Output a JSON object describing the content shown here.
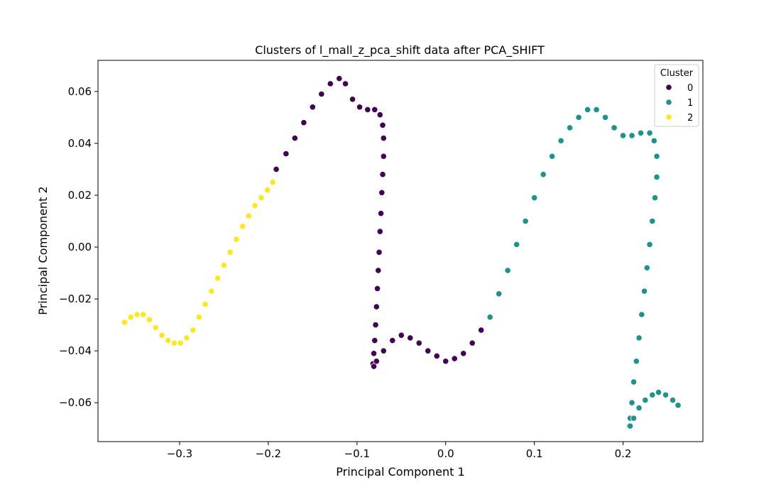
{
  "chart_data": {
    "type": "scatter",
    "title": "Clusters of l_mall_z_pca_shift data after PCA_SHIFT",
    "xlabel": "Principal Component 1",
    "ylabel": "Principal Component 2",
    "xlim": [
      -0.392,
      0.29
    ],
    "ylim": [
      -0.075,
      0.072
    ],
    "x_ticks": [
      -0.3,
      -0.2,
      -0.1,
      0.0,
      0.1,
      0.2
    ],
    "x_tick_labels": [
      "−0.3",
      "−0.2",
      "−0.1",
      "0.0",
      "0.1",
      "0.2"
    ],
    "y_ticks": [
      -0.06,
      -0.04,
      -0.02,
      0.0,
      0.02,
      0.04,
      0.06
    ],
    "y_tick_labels": [
      "−0.06",
      "−0.04",
      "−0.02",
      "0.00",
      "0.02",
      "0.04",
      "0.06"
    ],
    "grid": false,
    "legend": {
      "title": "Cluster",
      "position": "top-right",
      "entries": [
        {
          "label": "0",
          "color": "#440154"
        },
        {
          "label": "1",
          "color": "#21918c"
        },
        {
          "label": "2",
          "color": "#fde725"
        }
      ]
    },
    "series": [
      {
        "name": "0",
        "color": "#440154",
        "x": [
          -0.191,
          -0.18,
          -0.17,
          -0.16,
          -0.15,
          -0.14,
          -0.13,
          -0.12,
          -0.113,
          -0.105,
          -0.097,
          -0.088,
          -0.08,
          -0.074,
          -0.071,
          -0.07,
          -0.07,
          -0.071,
          -0.072,
          -0.073,
          -0.074,
          -0.075,
          -0.076,
          -0.077,
          -0.078,
          -0.079,
          -0.08,
          -0.081,
          -0.082,
          -0.081,
          -0.078,
          -0.07,
          -0.06,
          -0.05,
          -0.04,
          -0.03,
          -0.02,
          -0.01,
          0.0,
          0.01,
          0.02,
          0.03,
          0.04
        ],
        "y": [
          0.03,
          0.036,
          0.042,
          0.048,
          0.054,
          0.059,
          0.063,
          0.065,
          0.063,
          0.057,
          0.054,
          0.053,
          0.053,
          0.051,
          0.047,
          0.042,
          0.035,
          0.028,
          0.021,
          0.013,
          0.006,
          -0.002,
          -0.009,
          -0.016,
          -0.023,
          -0.03,
          -0.036,
          -0.041,
          -0.045,
          -0.046,
          -0.044,
          -0.04,
          -0.036,
          -0.034,
          -0.035,
          -0.037,
          -0.04,
          -0.042,
          -0.044,
          -0.043,
          -0.041,
          -0.037,
          -0.032
        ]
      },
      {
        "name": "1",
        "color": "#21918c",
        "x": [
          0.05,
          0.06,
          0.07,
          0.08,
          0.09,
          0.1,
          0.11,
          0.12,
          0.13,
          0.14,
          0.15,
          0.16,
          0.17,
          0.18,
          0.19,
          0.2,
          0.21,
          0.22,
          0.23,
          0.235,
          0.238,
          0.238,
          0.236,
          0.233,
          0.23,
          0.227,
          0.224,
          0.221,
          0.218,
          0.215,
          0.212,
          0.21,
          0.208,
          0.207,
          0.208,
          0.212,
          0.218,
          0.225,
          0.233,
          0.24,
          0.248,
          0.256,
          0.262
        ],
        "y": [
          -0.027,
          -0.018,
          -0.009,
          0.001,
          0.01,
          0.019,
          0.028,
          0.035,
          0.041,
          0.046,
          0.05,
          0.053,
          0.053,
          0.05,
          0.046,
          0.043,
          0.043,
          0.044,
          0.044,
          0.041,
          0.035,
          0.027,
          0.019,
          0.01,
          0.001,
          -0.008,
          -0.017,
          -0.026,
          -0.035,
          -0.044,
          -0.052,
          -0.06,
          -0.066,
          -0.069,
          -0.069,
          -0.066,
          -0.062,
          -0.059,
          -0.057,
          -0.056,
          -0.057,
          -0.059,
          -0.061
        ]
      },
      {
        "name": "2",
        "color": "#fde725",
        "x": [
          -0.362,
          -0.355,
          -0.348,
          -0.341,
          -0.334,
          -0.327,
          -0.32,
          -0.313,
          -0.306,
          -0.299,
          -0.292,
          -0.285,
          -0.278,
          -0.271,
          -0.264,
          -0.257,
          -0.25,
          -0.243,
          -0.236,
          -0.229,
          -0.222,
          -0.215,
          -0.208,
          -0.201,
          -0.195
        ],
        "y": [
          -0.029,
          -0.027,
          -0.026,
          -0.026,
          -0.028,
          -0.031,
          -0.034,
          -0.036,
          -0.037,
          -0.037,
          -0.035,
          -0.032,
          -0.027,
          -0.022,
          -0.017,
          -0.012,
          -0.007,
          -0.002,
          0.003,
          0.008,
          0.012,
          0.016,
          0.019,
          0.022,
          0.025
        ]
      }
    ]
  }
}
